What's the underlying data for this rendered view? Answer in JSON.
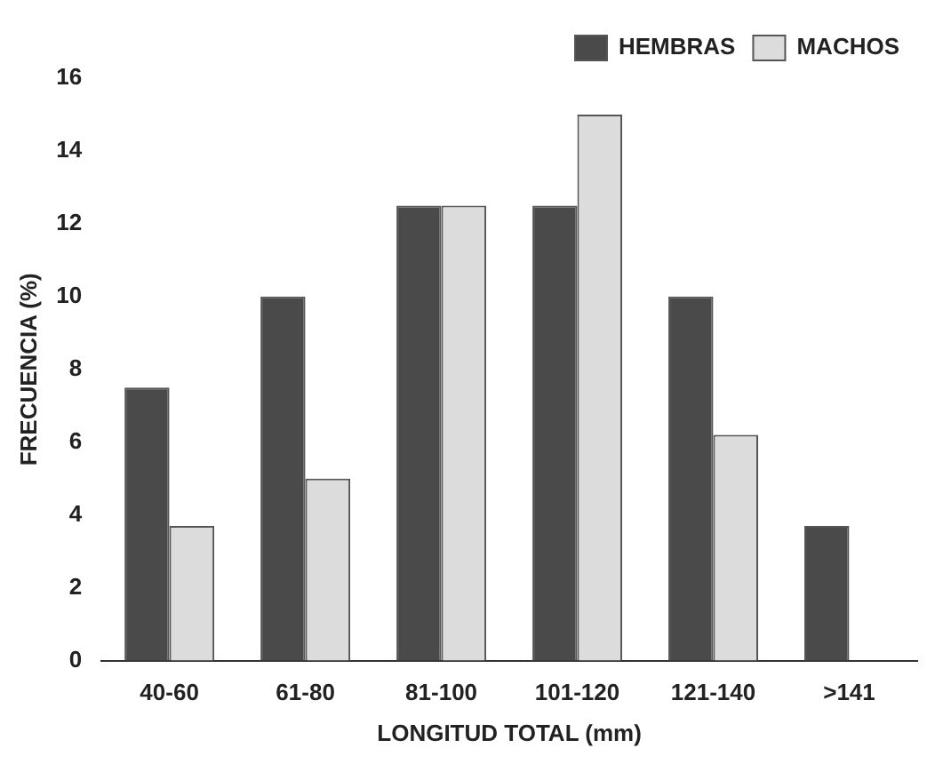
{
  "chart_data": {
    "type": "bar",
    "xlabel": "LONGITUD TOTAL (mm)",
    "ylabel": "FRECUENCIA (%)",
    "categories": [
      "40-60",
      "61-80",
      "81-100",
      "101-120",
      "121-140",
      ">141"
    ],
    "series": [
      {
        "name": "HEMBRAS",
        "color": "#4a4a4a",
        "values": [
          7.5,
          10,
          12.5,
          12.5,
          10,
          3.7
        ]
      },
      {
        "name": "MACHOS",
        "color": "#dcdcdc",
        "values": [
          3.7,
          5,
          12.5,
          15,
          6.2,
          null
        ]
      }
    ],
    "ylim": [
      0,
      16
    ],
    "yticks": [
      0,
      2,
      4,
      6,
      8,
      10,
      12,
      14,
      16
    ],
    "grid": false,
    "legend": "top right"
  }
}
